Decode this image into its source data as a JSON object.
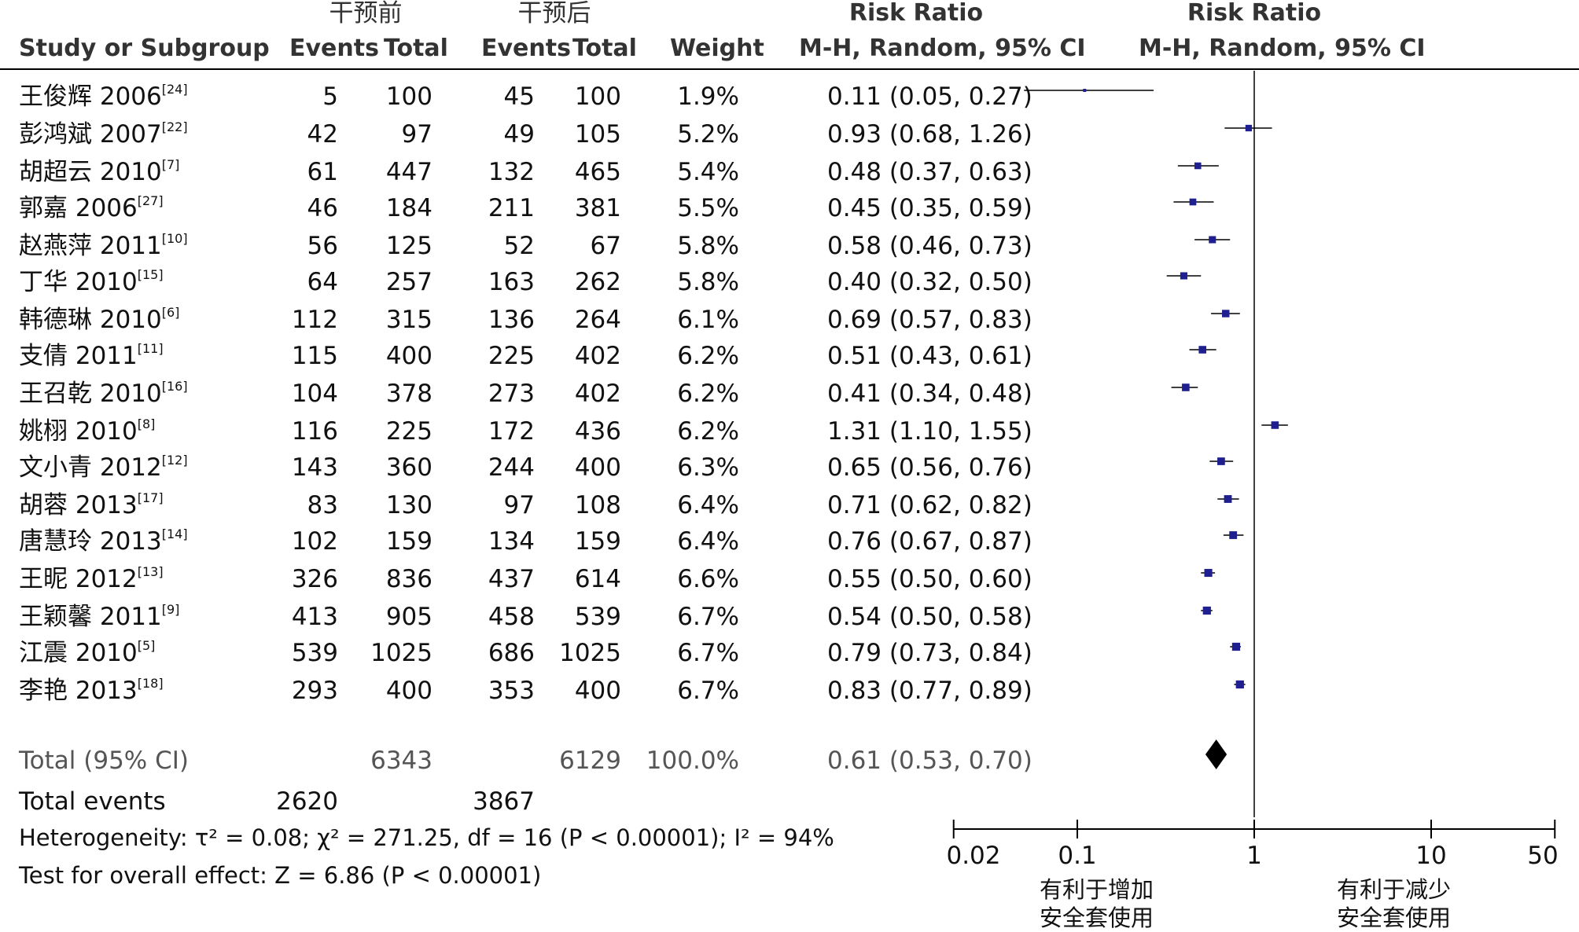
{
  "header": {
    "group1": "干预前",
    "group2": "干预后",
    "rr_title": "Risk Ratio",
    "rr_plot_title": "Risk Ratio",
    "study_col": "Study or Subgroup",
    "events1": "Events",
    "total1": "Total",
    "events2": "Events",
    "total2": "Total",
    "weight": "Weight",
    "method": "M-H, Random, 95% CI",
    "method_plot": "M-H, Random, 95% CI"
  },
  "studies": [
    {
      "name": "王俊辉 2006",
      "ref": "[24]",
      "e1": "5",
      "t1": "100",
      "e2": "45",
      "t2": "100",
      "weight": "1.9%",
      "ci": "0.11 (0.05, 0.27)"
    },
    {
      "name": "彭鸿斌 2007",
      "ref": "[22]",
      "e1": "42",
      "t1": "97",
      "e2": "49",
      "t2": "105",
      "weight": "5.2%",
      "ci": "0.93 (0.68, 1.26)"
    },
    {
      "name": "胡超云 2010",
      "ref": "[7]",
      "e1": "61",
      "t1": "447",
      "e2": "132",
      "t2": "465",
      "weight": "5.4%",
      "ci": "0.48 (0.37, 0.63)"
    },
    {
      "name": "郭嘉 2006",
      "ref": "[27]",
      "e1": "46",
      "t1": "184",
      "e2": "211",
      "t2": "381",
      "weight": "5.5%",
      "ci": "0.45 (0.35, 0.59)"
    },
    {
      "name": "赵燕萍 2011",
      "ref": "[10]",
      "e1": "56",
      "t1": "125",
      "e2": "52",
      "t2": "67",
      "weight": "5.8%",
      "ci": "0.58 (0.46, 0.73)"
    },
    {
      "name": "丁华 2010",
      "ref": "[15]",
      "e1": "64",
      "t1": "257",
      "e2": "163",
      "t2": "262",
      "weight": "5.8%",
      "ci": "0.40 (0.32, 0.50)"
    },
    {
      "name": "韩德琳 2010",
      "ref": "[6]",
      "e1": "112",
      "t1": "315",
      "e2": "136",
      "t2": "264",
      "weight": "6.1%",
      "ci": "0.69 (0.57, 0.83)"
    },
    {
      "name": "支倩 2011",
      "ref": "[11]",
      "e1": "115",
      "t1": "400",
      "e2": "225",
      "t2": "402",
      "weight": "6.2%",
      "ci": "0.51 (0.43, 0.61)"
    },
    {
      "name": "王召乾 2010",
      "ref": "[16]",
      "e1": "104",
      "t1": "378",
      "e2": "273",
      "t2": "402",
      "weight": "6.2%",
      "ci": "0.41 (0.34, 0.48)"
    },
    {
      "name": "姚栩 2010",
      "ref": "[8]",
      "e1": "116",
      "t1": "225",
      "e2": "172",
      "t2": "436",
      "weight": "6.2%",
      "ci": "1.31 (1.10, 1.55)"
    },
    {
      "name": "文小青 2012",
      "ref": "[12]",
      "e1": "143",
      "t1": "360",
      "e2": "244",
      "t2": "400",
      "weight": "6.3%",
      "ci": "0.65 (0.56, 0.76)"
    },
    {
      "name": "胡蓉 2013",
      "ref": "[17]",
      "e1": "83",
      "t1": "130",
      "e2": "97",
      "t2": "108",
      "weight": "6.4%",
      "ci": "0.71 (0.62, 0.82)"
    },
    {
      "name": "唐慧玲 2013",
      "ref": "[14]",
      "e1": "102",
      "t1": "159",
      "e2": "134",
      "t2": "159",
      "weight": "6.4%",
      "ci": "0.76 (0.67, 0.87)"
    },
    {
      "name": "王昵 2012",
      "ref": "[13]",
      "e1": "326",
      "t1": "836",
      "e2": "437",
      "t2": "614",
      "weight": "6.6%",
      "ci": "0.55 (0.50, 0.60)"
    },
    {
      "name": "王颖馨 2011",
      "ref": "[9]",
      "e1": "413",
      "t1": "905",
      "e2": "458",
      "t2": "539",
      "weight": "6.7%",
      "ci": "0.54 (0.50, 0.58)"
    },
    {
      "name": "江震 2010",
      "ref": "[5]",
      "e1": "539",
      "t1": "1025",
      "e2": "686",
      "t2": "1025",
      "weight": "6.7%",
      "ci": "0.79 (0.73, 0.84)"
    },
    {
      "name": "李艳 2013",
      "ref": "[18]",
      "e1": "293",
      "t1": "400",
      "e2": "353",
      "t2": "400",
      "weight": "6.7%",
      "ci": "0.83 (0.77, 0.89)"
    }
  ],
  "total": {
    "label": "Total (95% CI)",
    "t1": "6343",
    "t2": "6129",
    "weight": "100.0%",
    "ci": "0.61 (0.53, 0.70)"
  },
  "total_events": {
    "label": "Total events",
    "e1": "2620",
    "e2": "3867"
  },
  "heterogeneity": "Heterogeneity: τ² = 0.08; χ² = 271.25, df = 16 (P < 0.00001); I² = 94%",
  "overall_effect": "Test for overall effect: Z = 6.86 (P < 0.00001)",
  "axis": {
    "ticks": [
      "0.02",
      "0.1",
      "1",
      "10",
      "50"
    ],
    "left_label_1": "有利于增加",
    "left_label_2": "安全套使用",
    "right_label_1": "有利于减少",
    "right_label_2": "安全套使用"
  },
  "chart_data": {
    "type": "forest",
    "scale": "log",
    "xlim": [
      0.02,
      50
    ],
    "reference_line": 1,
    "marker_color": "#1f1f8f",
    "studies": [
      {
        "rr": 0.11,
        "lo": 0.05,
        "hi": 0.27,
        "weight": 1.9
      },
      {
        "rr": 0.93,
        "lo": 0.68,
        "hi": 1.26,
        "weight": 5.2
      },
      {
        "rr": 0.48,
        "lo": 0.37,
        "hi": 0.63,
        "weight": 5.4
      },
      {
        "rr": 0.45,
        "lo": 0.35,
        "hi": 0.59,
        "weight": 5.5
      },
      {
        "rr": 0.58,
        "lo": 0.46,
        "hi": 0.73,
        "weight": 5.8
      },
      {
        "rr": 0.4,
        "lo": 0.32,
        "hi": 0.5,
        "weight": 5.8
      },
      {
        "rr": 0.69,
        "lo": 0.57,
        "hi": 0.83,
        "weight": 6.1
      },
      {
        "rr": 0.51,
        "lo": 0.43,
        "hi": 0.61,
        "weight": 6.2
      },
      {
        "rr": 0.41,
        "lo": 0.34,
        "hi": 0.48,
        "weight": 6.2
      },
      {
        "rr": 1.31,
        "lo": 1.1,
        "hi": 1.55,
        "weight": 6.2
      },
      {
        "rr": 0.65,
        "lo": 0.56,
        "hi": 0.76,
        "weight": 6.3
      },
      {
        "rr": 0.71,
        "lo": 0.62,
        "hi": 0.82,
        "weight": 6.4
      },
      {
        "rr": 0.76,
        "lo": 0.67,
        "hi": 0.87,
        "weight": 6.4
      },
      {
        "rr": 0.55,
        "lo": 0.5,
        "hi": 0.6,
        "weight": 6.6
      },
      {
        "rr": 0.54,
        "lo": 0.5,
        "hi": 0.58,
        "weight": 6.7
      },
      {
        "rr": 0.79,
        "lo": 0.73,
        "hi": 0.84,
        "weight": 6.7
      },
      {
        "rr": 0.83,
        "lo": 0.77,
        "hi": 0.89,
        "weight": 6.7
      }
    ],
    "pooled": {
      "rr": 0.61,
      "lo": 0.53,
      "hi": 0.7
    }
  }
}
